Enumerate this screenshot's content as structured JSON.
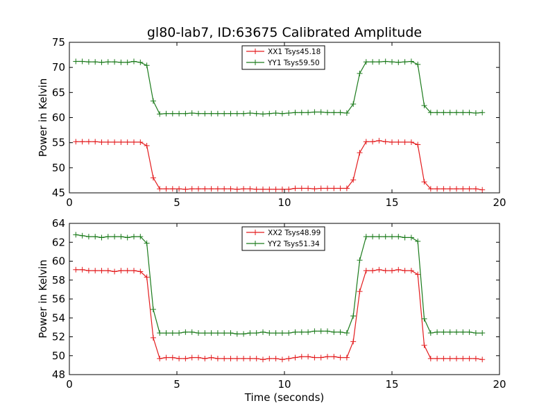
{
  "figure": {
    "title": "gl80-lab7, ID:63675 Calibrated Amplitude"
  },
  "colors": {
    "red": "#e31a1c",
    "green": "#1a7a1a"
  },
  "chart_data": [
    {
      "type": "line",
      "title": "gl80-lab7, ID:63675 Calibrated Amplitude",
      "xlabel": "",
      "ylabel": "Power in Kelvin",
      "xlim": [
        0,
        20
      ],
      "ylim": [
        45,
        75
      ],
      "xticks": [
        0,
        5,
        10,
        15,
        20
      ],
      "yticks": [
        45,
        50,
        55,
        60,
        65,
        70,
        75
      ],
      "legend": "top-center",
      "grid": false,
      "x": [
        0.3,
        0.6,
        0.9,
        1.2,
        1.5,
        1.8,
        2.1,
        2.4,
        2.7,
        3.0,
        3.3,
        3.6,
        3.9,
        4.2,
        4.5,
        4.8,
        5.1,
        5.4,
        5.7,
        6.0,
        6.3,
        6.6,
        6.9,
        7.2,
        7.5,
        7.8,
        8.1,
        8.4,
        8.7,
        9.0,
        9.3,
        9.6,
        9.9,
        10.2,
        10.5,
        10.8,
        11.1,
        11.4,
        11.7,
        12.0,
        12.3,
        12.6,
        12.9,
        13.2,
        13.5,
        13.8,
        14.1,
        14.4,
        14.7,
        15.0,
        15.3,
        15.6,
        15.9,
        16.2,
        16.5,
        16.8,
        17.1,
        17.4,
        17.7,
        18.0,
        18.3,
        18.6,
        18.9,
        19.2
      ],
      "series": [
        {
          "name": "XX1 Tsys45.18",
          "color": "#e31a1c",
          "values": [
            55.2,
            55.2,
            55.2,
            55.2,
            55.1,
            55.1,
            55.1,
            55.1,
            55.1,
            55.1,
            55.1,
            54.4,
            48.0,
            45.8,
            45.8,
            45.8,
            45.8,
            45.7,
            45.8,
            45.8,
            45.8,
            45.8,
            45.8,
            45.8,
            45.8,
            45.7,
            45.8,
            45.8,
            45.7,
            45.7,
            45.7,
            45.7,
            45.7,
            45.7,
            45.9,
            45.9,
            45.9,
            45.8,
            45.9,
            45.9,
            45.9,
            45.9,
            45.9,
            47.6,
            53.0,
            55.2,
            55.2,
            55.4,
            55.2,
            55.1,
            55.1,
            55.1,
            55.1,
            54.6,
            47.2,
            45.8,
            45.8,
            45.8,
            45.8,
            45.8,
            45.8,
            45.8,
            45.8,
            45.6
          ]
        },
        {
          "name": "YY1 Tsys59.50",
          "color": "#1a7a1a",
          "values": [
            71.2,
            71.2,
            71.1,
            71.1,
            71.0,
            71.1,
            71.1,
            71.0,
            71.0,
            71.2,
            71.0,
            70.4,
            63.3,
            60.7,
            60.8,
            60.8,
            60.8,
            60.8,
            60.9,
            60.8,
            60.8,
            60.8,
            60.8,
            60.8,
            60.8,
            60.8,
            60.8,
            60.9,
            60.8,
            60.7,
            60.8,
            60.9,
            60.8,
            60.9,
            61.0,
            61.0,
            61.0,
            61.1,
            61.1,
            61.0,
            61.0,
            61.0,
            60.9,
            62.7,
            68.8,
            71.1,
            71.1,
            71.1,
            71.2,
            71.1,
            71.0,
            71.1,
            71.2,
            70.6,
            62.4,
            61.0,
            61.0,
            61.0,
            61.0,
            61.0,
            61.0,
            61.0,
            60.9,
            61.0
          ]
        }
      ]
    },
    {
      "type": "line",
      "title": "",
      "xlabel": "Time (seconds)",
      "ylabel": "Power in Kelvin",
      "xlim": [
        0,
        20
      ],
      "ylim": [
        48,
        64
      ],
      "xticks": [
        0,
        5,
        10,
        15,
        20
      ],
      "yticks": [
        48,
        50,
        52,
        54,
        56,
        58,
        60,
        62,
        64
      ],
      "legend": "top-center",
      "grid": false,
      "x": [
        0.3,
        0.6,
        0.9,
        1.2,
        1.5,
        1.8,
        2.1,
        2.4,
        2.7,
        3.0,
        3.3,
        3.6,
        3.9,
        4.2,
        4.5,
        4.8,
        5.1,
        5.4,
        5.7,
        6.0,
        6.3,
        6.6,
        6.9,
        7.2,
        7.5,
        7.8,
        8.1,
        8.4,
        8.7,
        9.0,
        9.3,
        9.6,
        9.9,
        10.2,
        10.5,
        10.8,
        11.1,
        11.4,
        11.7,
        12.0,
        12.3,
        12.6,
        12.9,
        13.2,
        13.5,
        13.8,
        14.1,
        14.4,
        14.7,
        15.0,
        15.3,
        15.6,
        15.9,
        16.2,
        16.5,
        16.8,
        17.1,
        17.4,
        17.7,
        18.0,
        18.3,
        18.6,
        18.9,
        19.2
      ],
      "series": [
        {
          "name": "XX2 Tsys48.99",
          "color": "#e31a1c",
          "values": [
            59.1,
            59.1,
            59.0,
            59.0,
            59.0,
            59.0,
            58.9,
            59.0,
            59.0,
            59.0,
            58.9,
            58.3,
            51.9,
            49.7,
            49.8,
            49.8,
            49.7,
            49.7,
            49.8,
            49.8,
            49.7,
            49.8,
            49.7,
            49.7,
            49.7,
            49.7,
            49.7,
            49.7,
            49.7,
            49.6,
            49.7,
            49.7,
            49.6,
            49.7,
            49.8,
            49.9,
            49.9,
            49.8,
            49.8,
            49.9,
            49.9,
            49.8,
            49.8,
            51.5,
            56.8,
            59.0,
            59.0,
            59.1,
            59.0,
            59.0,
            59.1,
            59.0,
            59.0,
            58.6,
            51.1,
            49.7,
            49.7,
            49.7,
            49.7,
            49.7,
            49.7,
            49.7,
            49.7,
            49.6
          ]
        },
        {
          "name": "YY2 Tsys51.34",
          "color": "#1a7a1a",
          "values": [
            62.8,
            62.7,
            62.6,
            62.6,
            62.5,
            62.6,
            62.6,
            62.6,
            62.5,
            62.6,
            62.6,
            61.9,
            54.9,
            52.4,
            52.4,
            52.4,
            52.4,
            52.5,
            52.5,
            52.4,
            52.4,
            52.4,
            52.4,
            52.4,
            52.4,
            52.3,
            52.3,
            52.4,
            52.4,
            52.5,
            52.4,
            52.4,
            52.4,
            52.4,
            52.5,
            52.5,
            52.5,
            52.6,
            52.6,
            52.6,
            52.5,
            52.5,
            52.4,
            54.2,
            60.1,
            62.6,
            62.6,
            62.6,
            62.6,
            62.6,
            62.6,
            62.5,
            62.5,
            62.1,
            53.9,
            52.4,
            52.5,
            52.5,
            52.5,
            52.5,
            52.5,
            52.5,
            52.4,
            52.4
          ]
        }
      ]
    }
  ]
}
